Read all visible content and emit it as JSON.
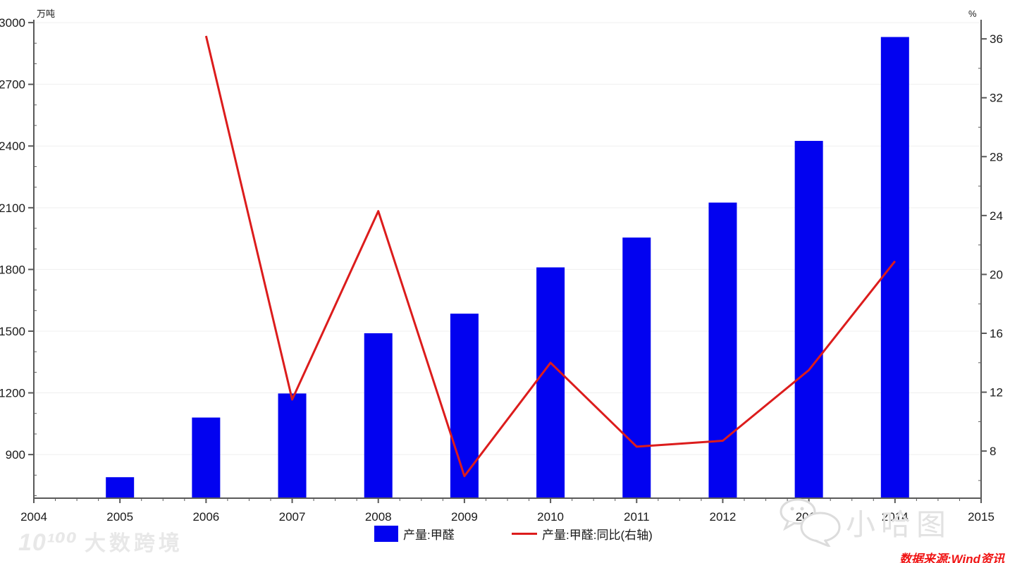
{
  "chart_data": {
    "type": "bar+line",
    "title": "",
    "categories": [
      "2005",
      "2006",
      "2007",
      "2008",
      "2009",
      "2010",
      "2011",
      "2012",
      "2013",
      "2014"
    ],
    "series": [
      {
        "name": "产量:甲醛",
        "type": "bar",
        "axis": "left",
        "unit": "万吨",
        "color": "#0202f0",
        "values": [
          790,
          1080,
          1197,
          1490,
          1585,
          1810,
          1955,
          2125,
          2425,
          2930
        ]
      },
      {
        "name": "产量:甲醛:同比(右轴)",
        "type": "line",
        "axis": "right",
        "unit": "%",
        "color": "#dc1c1c",
        "values": [
          null,
          36.2,
          11.5,
          24.3,
          6.3,
          14.0,
          8.3,
          8.7,
          13.5,
          20.9
        ]
      }
    ],
    "x_axis": {
      "start": 2004,
      "end": 2015,
      "tick_labels": [
        "2004",
        "2005",
        "2006",
        "2007",
        "2008",
        "2009",
        "2010",
        "2011",
        "2012",
        "2013",
        "2014",
        "2015"
      ],
      "minor_divisions": 4
    },
    "left_axis": {
      "label": "万吨",
      "min": 688,
      "max": 3014,
      "tick_start": 900,
      "tick_end": 3000,
      "tick_step": 300,
      "minor_step": 100,
      "tick_labels": [
        "900",
        "1200",
        "1500",
        "1800",
        "2100",
        "2400",
        "2700",
        "3000"
      ]
    },
    "right_axis": {
      "label": "%",
      "min": 4.8,
      "max": 37.3,
      "tick_start": 8,
      "tick_end": 36,
      "tick_step": 4,
      "minor_step": 2,
      "tick_labels": [
        "8",
        "12",
        "16",
        "20",
        "24",
        "28",
        "32",
        "36"
      ]
    },
    "grid": {
      "horizontal_major": true,
      "color": "#efefef"
    },
    "legend_position": "bottom-center"
  },
  "legend": {
    "items": [
      {
        "label": "产量:甲醛",
        "swatch": "bar",
        "color": "#0202f0"
      },
      {
        "label": "产量:甲醛:同比(右轴)",
        "swatch": "line",
        "color": "#dc1c1c"
      }
    ]
  },
  "watermarks": {
    "bottom_left_mark": "10¹⁰⁰",
    "bottom_left_text": "大数跨境",
    "bottom_right_text": "小哈图"
  },
  "footer": {
    "source": "数据来源:Wind资讯"
  },
  "colors": {
    "background": "#ffffff",
    "axis": "#595959",
    "tick_label": "#1a1a1a",
    "bar": "#0202f0",
    "line": "#dc1c1c",
    "grid": "#efefef",
    "watermark": "#e5e5e5",
    "source_text": "#f01414"
  }
}
